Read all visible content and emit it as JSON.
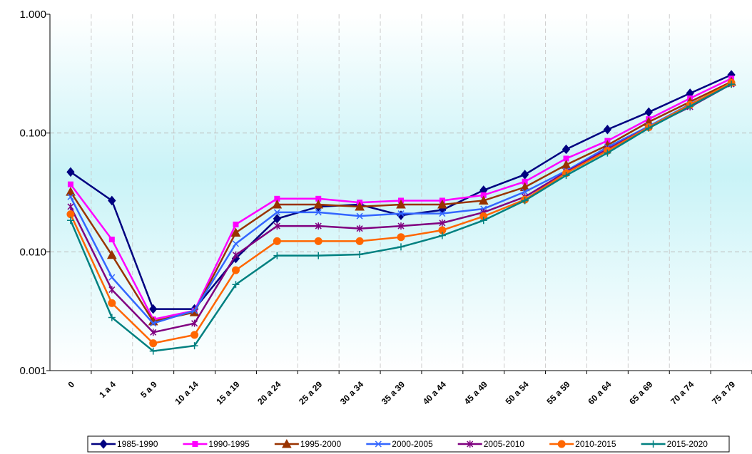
{
  "chart_data": {
    "type": "line",
    "log_scale": true,
    "grid": true,
    "legend": "bottom",
    "categories": [
      "0",
      "1 a 4",
      "5 a 9",
      "10 a 14",
      "15 a 19",
      "20 a 24",
      "25 a 29",
      "30 a 34",
      "35 a 39",
      "40 a 44",
      "45 a 49",
      "50 a 54",
      "55 a 59",
      "60 a 64",
      "65 a 69",
      "70 a 74",
      "75 a 79"
    ],
    "ylim": [
      0.001,
      1
    ],
    "yticks": [
      {
        "value": 1,
        "label": "1.000"
      },
      {
        "value": 0.1,
        "label": "0.100"
      },
      {
        "value": 0.01,
        "label": "0.010"
      },
      {
        "value": 0.001,
        "label": "0.001"
      }
    ],
    "series": [
      {
        "name": "1985-1990",
        "color": "#000080",
        "marker": "diamond",
        "values": [
          0.047,
          0.027,
          0.0033,
          0.0033,
          0.0088,
          0.019,
          0.024,
          0.025,
          0.0203,
          0.0225,
          0.033,
          0.0447,
          0.073,
          0.107,
          0.15,
          0.216,
          0.309
        ]
      },
      {
        "name": "1990-1995",
        "color": "#ff00ff",
        "marker": "square",
        "values": [
          0.037,
          0.0127,
          0.0027,
          0.0032,
          0.017,
          0.028,
          0.028,
          0.026,
          0.027,
          0.027,
          0.03,
          0.039,
          0.061,
          0.086,
          0.131,
          0.196,
          0.288
        ]
      },
      {
        "name": "1995-2000",
        "color": "#993300",
        "marker": "triangle",
        "values": [
          0.032,
          0.0094,
          0.0026,
          0.0031,
          0.0145,
          0.025,
          0.025,
          0.024,
          0.025,
          0.025,
          0.027,
          0.035,
          0.054,
          0.079,
          0.124,
          0.183,
          0.27
        ]
      },
      {
        "name": "2000-2005",
        "color": "#3366ff",
        "marker": "x",
        "values": [
          0.029,
          0.0061,
          0.0025,
          0.0032,
          0.0117,
          0.0215,
          0.0215,
          0.02,
          0.021,
          0.021,
          0.023,
          0.032,
          0.048,
          0.076,
          0.114,
          0.175,
          0.258
        ]
      },
      {
        "name": "2005-2010",
        "color": "#800080",
        "marker": "star",
        "values": [
          0.024,
          0.0048,
          0.0021,
          0.0025,
          0.0094,
          0.0165,
          0.0165,
          0.0157,
          0.0165,
          0.0175,
          0.0215,
          0.029,
          0.047,
          0.073,
          0.112,
          0.166,
          0.258
        ]
      },
      {
        "name": "2010-2015",
        "color": "#ff6600",
        "marker": "circle",
        "values": [
          0.0207,
          0.0037,
          0.0017,
          0.002,
          0.007,
          0.0123,
          0.0123,
          0.0123,
          0.0133,
          0.0152,
          0.0199,
          0.0275,
          0.046,
          0.071,
          0.112,
          0.173,
          0.265
        ]
      },
      {
        "name": "2015-2020",
        "color": "#008080",
        "marker": "plus",
        "values": [
          0.0184,
          0.0028,
          0.00146,
          0.00162,
          0.0053,
          0.0093,
          0.0093,
          0.0095,
          0.011,
          0.0137,
          0.0184,
          0.027,
          0.044,
          0.068,
          0.11,
          0.168,
          0.258
        ]
      }
    ]
  }
}
